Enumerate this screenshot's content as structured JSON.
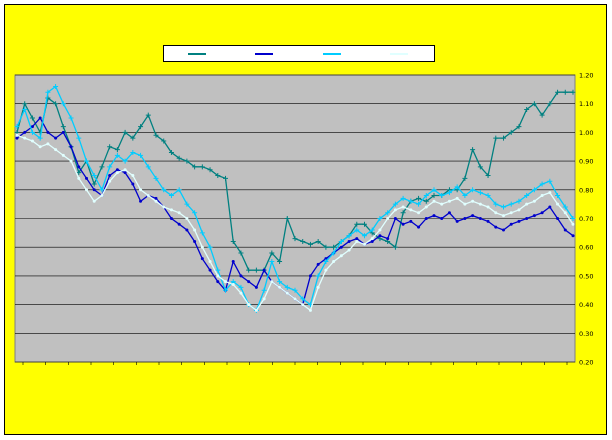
{
  "chart_data": {
    "type": "line",
    "title": "",
    "xlabel": "",
    "ylabel": "",
    "ylim": [
      0.2,
      1.2
    ],
    "y_ticks": [
      "0.20",
      "0.30",
      "0.40",
      "0.50",
      "0.60",
      "0.70",
      "0.80",
      "0.90",
      "1.00",
      "1.10",
      "1.20"
    ],
    "x_tick_labels": [
      "",
      "",
      "",
      "",
      "",
      "",
      "",
      "",
      "",
      "",
      "",
      "",
      "",
      "",
      "",
      "",
      "",
      "",
      "",
      "",
      "",
      "",
      "",
      "",
      ""
    ],
    "grid": "horizontal",
    "plot_background": "#c0c0c0",
    "legend_position": "top-center",
    "series": [
      {
        "name": "",
        "color": "#008080",
        "marker": "plus",
        "values": [
          1.0,
          1.1,
          1.05,
          1.0,
          1.12,
          1.1,
          1.02,
          0.95,
          0.86,
          0.9,
          0.82,
          0.88,
          0.95,
          0.94,
          1.0,
          0.98,
          1.02,
          1.06,
          0.99,
          0.97,
          0.93,
          0.91,
          0.9,
          0.88,
          0.88,
          0.87,
          0.85,
          0.84,
          0.62,
          0.58,
          0.52,
          0.52,
          0.52,
          0.58,
          0.55,
          0.7,
          0.63,
          0.62,
          0.61,
          0.62,
          0.6,
          0.6,
          0.62,
          0.64,
          0.68,
          0.68,
          0.65,
          0.63,
          0.62,
          0.6,
          0.72,
          0.76,
          0.77,
          0.76,
          0.78,
          0.78,
          0.8,
          0.8,
          0.84,
          0.94,
          0.88,
          0.85,
          0.98,
          0.98,
          1.0,
          1.02,
          1.08,
          1.1,
          1.06,
          1.1,
          1.14,
          1.14,
          1.14
        ]
      },
      {
        "name": "",
        "color": "#0000cc",
        "marker": "dot",
        "values": [
          0.98,
          1.0,
          1.02,
          1.05,
          1.0,
          0.98,
          1.0,
          0.95,
          0.88,
          0.84,
          0.8,
          0.78,
          0.85,
          0.87,
          0.86,
          0.82,
          0.76,
          0.78,
          0.77,
          0.74,
          0.7,
          0.68,
          0.66,
          0.62,
          0.56,
          0.52,
          0.48,
          0.45,
          0.55,
          0.5,
          0.48,
          0.46,
          0.52,
          0.48,
          0.46,
          0.44,
          0.42,
          0.4,
          0.5,
          0.54,
          0.56,
          0.58,
          0.6,
          0.62,
          0.63,
          0.61,
          0.62,
          0.64,
          0.63,
          0.7,
          0.68,
          0.69,
          0.67,
          0.7,
          0.71,
          0.7,
          0.72,
          0.69,
          0.7,
          0.71,
          0.7,
          0.69,
          0.67,
          0.66,
          0.68,
          0.69,
          0.7,
          0.71,
          0.72,
          0.74,
          0.7,
          0.66,
          0.64
        ]
      },
      {
        "name": "",
        "color": "#00ccff",
        "marker": "plus",
        "values": [
          1.02,
          1.08,
          1.0,
          0.98,
          1.14,
          1.16,
          1.1,
          1.05,
          0.98,
          0.9,
          0.85,
          0.8,
          0.88,
          0.92,
          0.9,
          0.93,
          0.92,
          0.88,
          0.84,
          0.8,
          0.78,
          0.8,
          0.75,
          0.72,
          0.65,
          0.6,
          0.52,
          0.45,
          0.48,
          0.46,
          0.4,
          0.38,
          0.45,
          0.55,
          0.48,
          0.46,
          0.45,
          0.42,
          0.4,
          0.5,
          0.55,
          0.58,
          0.62,
          0.64,
          0.66,
          0.64,
          0.66,
          0.7,
          0.72,
          0.75,
          0.77,
          0.76,
          0.75,
          0.78,
          0.8,
          0.78,
          0.79,
          0.81,
          0.78,
          0.8,
          0.79,
          0.78,
          0.75,
          0.74,
          0.75,
          0.76,
          0.78,
          0.8,
          0.82,
          0.83,
          0.78,
          0.74,
          0.7
        ]
      },
      {
        "name": "",
        "color": "#e0ffff",
        "marker": "dot",
        "values": [
          0.99,
          0.98,
          0.97,
          0.95,
          0.96,
          0.94,
          0.92,
          0.9,
          0.84,
          0.8,
          0.76,
          0.78,
          0.83,
          0.86,
          0.87,
          0.85,
          0.8,
          0.78,
          0.76,
          0.74,
          0.73,
          0.72,
          0.7,
          0.66,
          0.6,
          0.55,
          0.5,
          0.48,
          0.47,
          0.44,
          0.4,
          0.38,
          0.42,
          0.48,
          0.46,
          0.44,
          0.42,
          0.4,
          0.38,
          0.46,
          0.52,
          0.55,
          0.57,
          0.59,
          0.62,
          0.61,
          0.63,
          0.66,
          0.7,
          0.73,
          0.74,
          0.73,
          0.72,
          0.74,
          0.76,
          0.75,
          0.76,
          0.77,
          0.75,
          0.76,
          0.75,
          0.74,
          0.72,
          0.71,
          0.72,
          0.73,
          0.75,
          0.76,
          0.78,
          0.79,
          0.75,
          0.72,
          0.68
        ]
      }
    ]
  }
}
